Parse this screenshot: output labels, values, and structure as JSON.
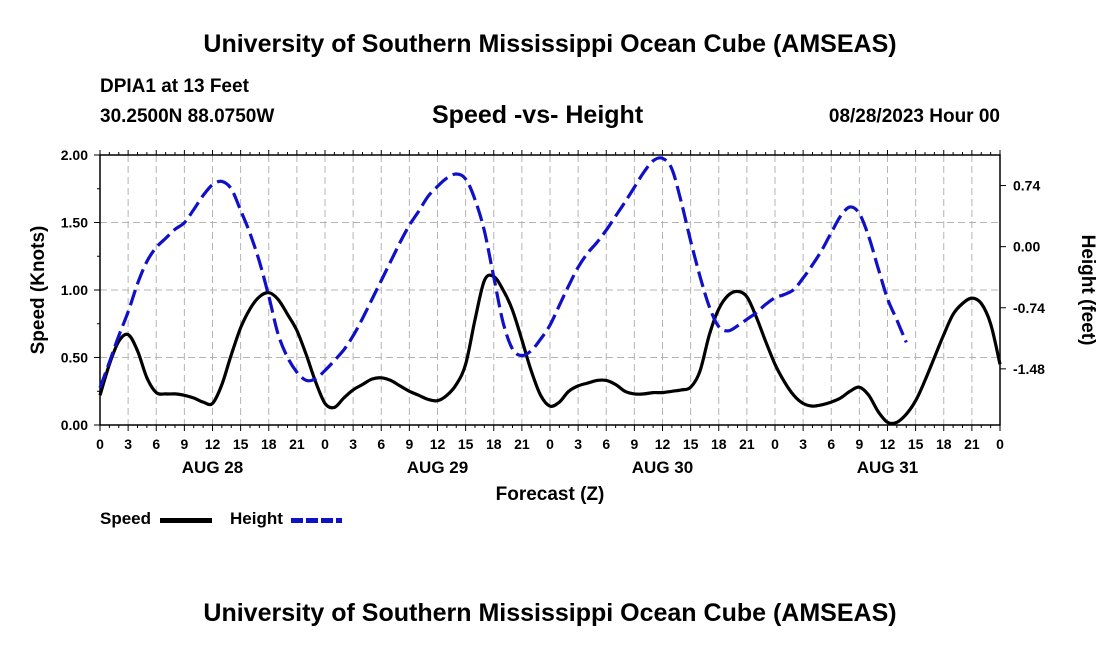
{
  "header": {
    "title": "University of Southern Mississippi Ocean Cube (AMSEAS)",
    "station": "DPIA1 at 13 Feet",
    "coords": "30.2500N  88.0750W",
    "subtitle": "Speed -vs- Height",
    "datetime": "08/28/2023 Hour 00"
  },
  "footer": {
    "title": "University of Southern Mississippi Ocean Cube (AMSEAS)"
  },
  "legend": {
    "speed_label": "Speed",
    "height_label": "Height"
  },
  "colors": {
    "speed": "#000000",
    "height": "#1010c8",
    "grid": "#b4b4b4"
  },
  "chart_data": {
    "type": "line",
    "title": "Speed -vs- Height",
    "xlabel": "Forecast (Z)",
    "ylabel": "Speed (Knots)",
    "y2label": "Height (feet)",
    "xlim": [
      0,
      96
    ],
    "ylim": [
      0,
      2.0
    ],
    "y2lim": [
      -2.16,
      1.11
    ],
    "x_ticks": [
      0,
      3,
      6,
      9,
      12,
      15,
      18,
      21,
      24,
      27,
      30,
      33,
      36,
      39,
      42,
      45,
      48,
      51,
      54,
      57,
      60,
      63,
      66,
      69,
      72,
      75,
      78,
      81,
      84,
      87,
      90,
      93,
      96
    ],
    "x_tick_labels": [
      "0",
      "3",
      "6",
      "9",
      "12",
      "15",
      "18",
      "21",
      "0",
      "3",
      "6",
      "9",
      "12",
      "15",
      "18",
      "21",
      "0",
      "3",
      "6",
      "9",
      "12",
      "15",
      "18",
      "21",
      "0",
      "3",
      "6",
      "9",
      "12",
      "15",
      "18",
      "21",
      "0"
    ],
    "day_labels": [
      {
        "x": 12,
        "label": "AUG 28"
      },
      {
        "x": 36,
        "label": "AUG 29"
      },
      {
        "x": 60,
        "label": "AUG 30"
      },
      {
        "x": 84,
        "label": "AUG 31"
      }
    ],
    "y_ticks": [
      0.0,
      0.5,
      1.0,
      1.5,
      2.0
    ],
    "y_tick_labels": [
      "0.00",
      "0.50",
      "1.00",
      "1.50",
      "2.00"
    ],
    "y2_ticks": [
      0.74,
      0.0,
      -0.74,
      -1.48
    ],
    "y2_tick_labels": [
      "0.74",
      "0.00",
      "-0.74",
      "-1.48"
    ],
    "series": [
      {
        "name": "Speed",
        "axis": "left",
        "style": "solid",
        "points": [
          [
            0,
            0.22
          ],
          [
            1,
            0.45
          ],
          [
            2,
            0.62
          ],
          [
            3,
            0.67
          ],
          [
            4,
            0.55
          ],
          [
            5,
            0.35
          ],
          [
            6,
            0.24
          ],
          [
            7,
            0.23
          ],
          [
            8,
            0.23
          ],
          [
            9,
            0.22
          ],
          [
            10,
            0.2
          ],
          [
            11,
            0.17
          ],
          [
            12,
            0.16
          ],
          [
            13,
            0.3
          ],
          [
            14,
            0.52
          ],
          [
            15,
            0.72
          ],
          [
            16,
            0.86
          ],
          [
            17,
            0.95
          ],
          [
            18,
            0.98
          ],
          [
            19,
            0.93
          ],
          [
            20,
            0.82
          ],
          [
            21,
            0.7
          ],
          [
            22,
            0.52
          ],
          [
            23,
            0.32
          ],
          [
            24,
            0.16
          ],
          [
            25,
            0.13
          ],
          [
            26,
            0.2
          ],
          [
            27,
            0.26
          ],
          [
            28,
            0.3
          ],
          [
            29,
            0.34
          ],
          [
            30,
            0.35
          ],
          [
            31,
            0.33
          ],
          [
            32,
            0.29
          ],
          [
            33,
            0.25
          ],
          [
            34,
            0.22
          ],
          [
            35,
            0.19
          ],
          [
            36,
            0.18
          ],
          [
            37,
            0.22
          ],
          [
            38,
            0.3
          ],
          [
            39,
            0.45
          ],
          [
            40,
            0.78
          ],
          [
            41,
            1.07
          ],
          [
            42,
            1.1
          ],
          [
            43,
            1.0
          ],
          [
            44,
            0.85
          ],
          [
            45,
            0.63
          ],
          [
            46,
            0.4
          ],
          [
            47,
            0.22
          ],
          [
            48,
            0.14
          ],
          [
            49,
            0.17
          ],
          [
            50,
            0.25
          ],
          [
            51,
            0.29
          ],
          [
            52,
            0.31
          ],
          [
            53,
            0.33
          ],
          [
            54,
            0.33
          ],
          [
            55,
            0.3
          ],
          [
            56,
            0.25
          ],
          [
            57,
            0.23
          ],
          [
            58,
            0.23
          ],
          [
            59,
            0.24
          ],
          [
            60,
            0.24
          ],
          [
            61,
            0.25
          ],
          [
            62,
            0.26
          ],
          [
            63,
            0.28
          ],
          [
            64,
            0.4
          ],
          [
            65,
            0.67
          ],
          [
            66,
            0.86
          ],
          [
            67,
            0.96
          ],
          [
            68,
            0.99
          ],
          [
            69,
            0.95
          ],
          [
            70,
            0.8
          ],
          [
            71,
            0.62
          ],
          [
            72,
            0.45
          ],
          [
            73,
            0.32
          ],
          [
            74,
            0.22
          ],
          [
            75,
            0.16
          ],
          [
            76,
            0.14
          ],
          [
            77,
            0.15
          ],
          [
            78,
            0.17
          ],
          [
            79,
            0.2
          ],
          [
            80,
            0.25
          ],
          [
            81,
            0.28
          ],
          [
            82,
            0.22
          ],
          [
            83,
            0.1
          ],
          [
            84,
            0.02
          ],
          [
            85,
            0.02
          ],
          [
            86,
            0.08
          ],
          [
            87,
            0.18
          ],
          [
            88,
            0.33
          ],
          [
            89,
            0.5
          ],
          [
            90,
            0.67
          ],
          [
            91,
            0.82
          ],
          [
            92,
            0.9
          ],
          [
            93,
            0.94
          ],
          [
            94,
            0.9
          ],
          [
            95,
            0.75
          ],
          [
            96,
            0.45
          ]
        ]
      },
      {
        "name": "Height",
        "axis": "right",
        "style": "dashed",
        "points": [
          [
            0,
            -1.71
          ],
          [
            1,
            -1.4
          ],
          [
            2,
            -1.08
          ],
          [
            3,
            -0.79
          ],
          [
            4,
            -0.45
          ],
          [
            5,
            -0.18
          ],
          [
            6,
            -0.01
          ],
          [
            7,
            0.1
          ],
          [
            8,
            0.21
          ],
          [
            9,
            0.29
          ],
          [
            10,
            0.45
          ],
          [
            11,
            0.62
          ],
          [
            12,
            0.75
          ],
          [
            13,
            0.79
          ],
          [
            14,
            0.7
          ],
          [
            15,
            0.44
          ],
          [
            16,
            0.16
          ],
          [
            17,
            -0.18
          ],
          [
            18,
            -0.6
          ],
          [
            19,
            -1.06
          ],
          [
            20,
            -1.34
          ],
          [
            21,
            -1.52
          ],
          [
            22,
            -1.62
          ],
          [
            23,
            -1.6
          ],
          [
            24,
            -1.5
          ],
          [
            25,
            -1.38
          ],
          [
            26,
            -1.25
          ],
          [
            27,
            -1.08
          ],
          [
            28,
            -0.87
          ],
          [
            29,
            -0.64
          ],
          [
            30,
            -0.41
          ],
          [
            31,
            -0.18
          ],
          [
            32,
            0.05
          ],
          [
            33,
            0.26
          ],
          [
            34,
            0.43
          ],
          [
            35,
            0.61
          ],
          [
            36,
            0.73
          ],
          [
            37,
            0.83
          ],
          [
            38,
            0.88
          ],
          [
            39,
            0.82
          ],
          [
            40,
            0.57
          ],
          [
            41,
            0.19
          ],
          [
            42,
            -0.37
          ],
          [
            43,
            -0.92
          ],
          [
            44,
            -1.24
          ],
          [
            45,
            -1.32
          ],
          [
            46,
            -1.26
          ],
          [
            47,
            -1.12
          ],
          [
            48,
            -0.95
          ],
          [
            49,
            -0.71
          ],
          [
            50,
            -0.47
          ],
          [
            51,
            -0.25
          ],
          [
            52,
            -0.08
          ],
          [
            53,
            0.05
          ],
          [
            54,
            0.2
          ],
          [
            55,
            0.37
          ],
          [
            56,
            0.54
          ],
          [
            57,
            0.72
          ],
          [
            58,
            0.9
          ],
          [
            59,
            1.04
          ],
          [
            60,
            1.07
          ],
          [
            61,
            0.94
          ],
          [
            62,
            0.54
          ],
          [
            63,
            0.07
          ],
          [
            64,
            -0.36
          ],
          [
            65,
            -0.73
          ],
          [
            66,
            -0.97
          ],
          [
            67,
            -1.02
          ],
          [
            68,
            -0.96
          ],
          [
            69,
            -0.88
          ],
          [
            70,
            -0.8
          ],
          [
            71,
            -0.7
          ],
          [
            72,
            -0.62
          ],
          [
            73,
            -0.58
          ],
          [
            74,
            -0.52
          ],
          [
            75,
            -0.38
          ],
          [
            76,
            -0.22
          ],
          [
            77,
            -0.04
          ],
          [
            78,
            0.17
          ],
          [
            79,
            0.37
          ],
          [
            80,
            0.48
          ],
          [
            81,
            0.4
          ],
          [
            82,
            0.12
          ],
          [
            83,
            -0.26
          ],
          [
            84,
            -0.63
          ],
          [
            85,
            -0.89
          ],
          [
            86,
            -1.16
          ]
        ]
      }
    ]
  }
}
